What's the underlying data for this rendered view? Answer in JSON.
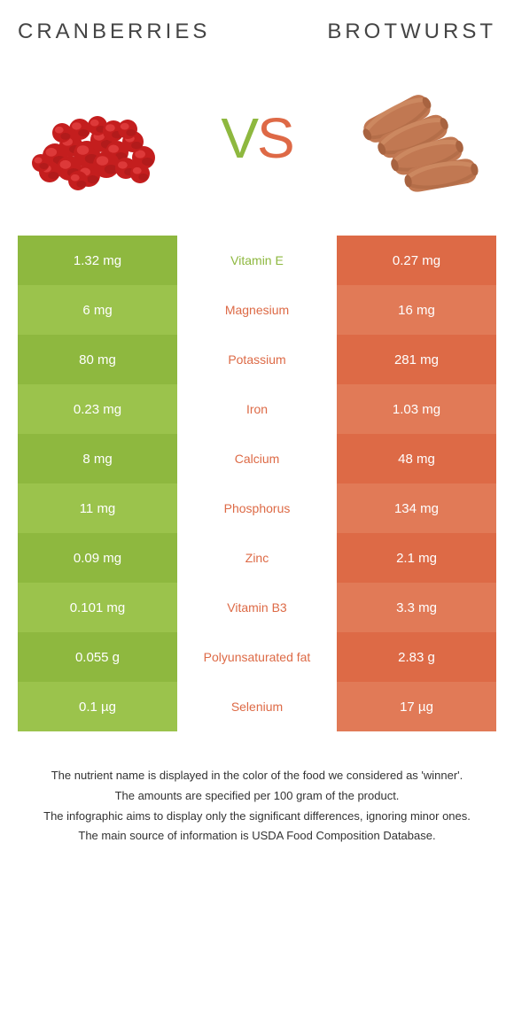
{
  "header": {
    "leftTitle": "CRANBERRIES",
    "rightTitle": "BROTWURST",
    "vs_v": "V",
    "vs_s": "S"
  },
  "colors": {
    "green1": "#8eb83f",
    "green2": "#9bc34c",
    "orange1": "#dd6a46",
    "orange2": "#e17a57",
    "midText_green": "#8eb83f",
    "midText_orange": "#dd6a46"
  },
  "leftFood": {
    "primary": "#c41e1e",
    "secondary": "#a01818",
    "highlight": "#e84545"
  },
  "rightFood": {
    "primary": "#c17852",
    "secondary": "#a86340",
    "highlight": "#d4936b"
  },
  "rows": [
    {
      "left": "1.32 mg",
      "mid": "Vitamin E",
      "right": "0.27 mg",
      "winner": "left"
    },
    {
      "left": "6 mg",
      "mid": "Magnesium",
      "right": "16 mg",
      "winner": "right"
    },
    {
      "left": "80 mg",
      "mid": "Potassium",
      "right": "281 mg",
      "winner": "right"
    },
    {
      "left": "0.23 mg",
      "mid": "Iron",
      "right": "1.03 mg",
      "winner": "right"
    },
    {
      "left": "8 mg",
      "mid": "Calcium",
      "right": "48 mg",
      "winner": "right"
    },
    {
      "left": "11 mg",
      "mid": "Phosphorus",
      "right": "134 mg",
      "winner": "right"
    },
    {
      "left": "0.09 mg",
      "mid": "Zinc",
      "right": "2.1 mg",
      "winner": "right"
    },
    {
      "left": "0.101 mg",
      "mid": "Vitamin B3",
      "right": "3.3 mg",
      "winner": "right"
    },
    {
      "left": "0.055 g",
      "mid": "Polyunsaturated fat",
      "right": "2.83 g",
      "winner": "right"
    },
    {
      "left": "0.1 µg",
      "mid": "Selenium",
      "right": "17 µg",
      "winner": "right"
    }
  ],
  "footnotes": [
    "The nutrient name is displayed in the color of the food we considered as 'winner'.",
    "The amounts are specified per 100 gram of the product.",
    "The infographic aims to display only the significant differences, ignoring minor ones.",
    "The main source of information is USDA Food Composition Database."
  ]
}
